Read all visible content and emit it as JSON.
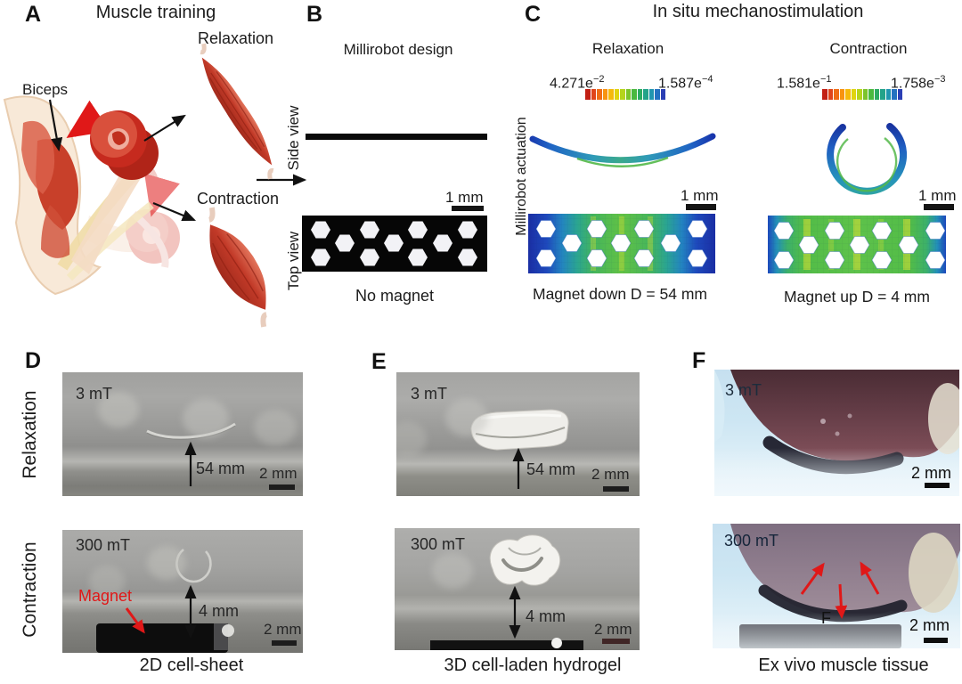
{
  "panelA": {
    "label": "A",
    "title": "Muscle training",
    "biceps_label": "Biceps",
    "relaxation_label": "Relaxation",
    "contraction_label": "Contraction"
  },
  "panelB": {
    "label": "B",
    "title": "Millirobot design",
    "side_view_label": "Side view",
    "top_view_label": "Top view",
    "scale_bar": "1 mm",
    "caption": "No magnet"
  },
  "panelC": {
    "label": "C",
    "title": "In situ mechanostimulation",
    "axis_label": "Millirobot actuation",
    "relaxation": {
      "title": "Relaxation",
      "cbar_min_mantissa": "4.271e",
      "cbar_min_exp": "−2",
      "cbar_max_mantissa": "1.587e",
      "cbar_max_exp": "−4",
      "scale_bar": "1 mm",
      "caption": "Magnet down D = 54 mm"
    },
    "contraction": {
      "title": "Contraction",
      "cbar_min_mantissa": "1.581e",
      "cbar_min_exp": "−1",
      "cbar_max_mantissa": "1.758e",
      "cbar_max_exp": "−3",
      "scale_bar": "1 mm",
      "caption": "Magnet up D = 4 mm"
    }
  },
  "panelD": {
    "label": "D",
    "row_top_label": "Relaxation",
    "row_bottom_label": "Contraction",
    "top": {
      "field": "3 mT",
      "distance": "54 mm",
      "scale_bar": "2 mm"
    },
    "bottom": {
      "field": "300 mT",
      "magnet_label": "Magnet",
      "distance": "4 mm",
      "scale_bar": "2 mm"
    },
    "caption": "2D cell-sheet"
  },
  "panelE": {
    "label": "E",
    "top": {
      "field": "3 mT",
      "distance": "54 mm",
      "scale_bar": "2 mm"
    },
    "bottom": {
      "field": "300 mT",
      "distance": "4 mm",
      "scale_bar": "2 mm"
    },
    "caption": "3D cell-laden hydrogel"
  },
  "panelF": {
    "label": "F",
    "top": {
      "field": "3 mT",
      "scale_bar": "2 mm"
    },
    "bottom": {
      "field": "300 mT",
      "force_label": "F",
      "scale_bar": "2 mm"
    },
    "caption": "Ex vivo muscle tissue"
  },
  "colors": {
    "annotation_red": "#e02018",
    "colorbar_segments": [
      "#c21f14",
      "#e0441a",
      "#ef6c15",
      "#f89310",
      "#f5b90c",
      "#e0d40f",
      "#b5d41c",
      "#7cc42c",
      "#4ab93f",
      "#2cab62",
      "#23a389",
      "#2196af",
      "#2472c1",
      "#2b3fb5"
    ]
  }
}
